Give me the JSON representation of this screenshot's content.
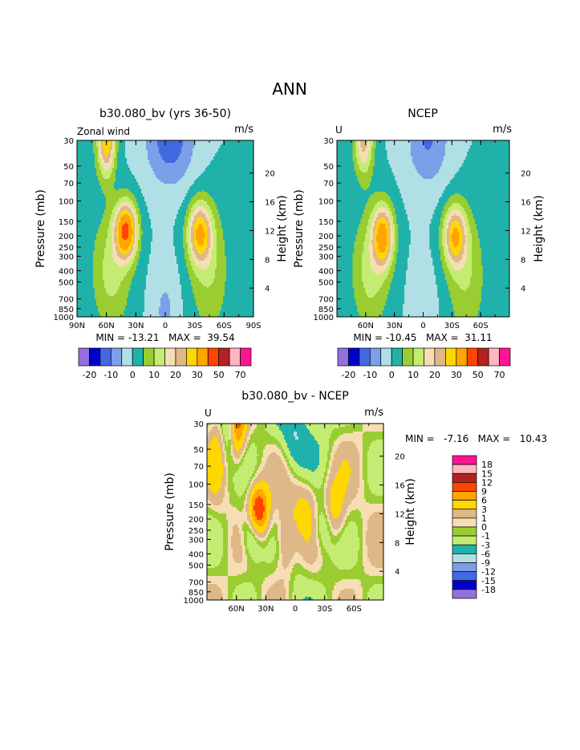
{
  "page_title": "ANN",
  "colors": {
    "full": [
      "#9370db",
      "#0000cd",
      "#4169e1",
      "#7b9fe8",
      "#b0e0e6",
      "#20b2aa",
      "#9acd32",
      "#c5ec72",
      "#f5deb3",
      "#deb887",
      "#ffd700",
      "#ffa500",
      "#ff4500",
      "#b22222",
      "#ffb6c1",
      "#ff1493"
    ],
    "diff": [
      "#9370db",
      "#0000cd",
      "#4169e1",
      "#7b9fe8",
      "#b0e0e6",
      "#20b2aa",
      "#c5ec72",
      "#9acd32",
      "#f5deb3",
      "#deb887",
      "#ffd700",
      "#ffa500",
      "#ff4500",
      "#b22222",
      "#ffb6c1",
      "#ff1493"
    ]
  },
  "chart_data": [
    {
      "type": "heatmap",
      "title": "b30.080_bv (yrs 36-50)",
      "left_label": "Zonal wind",
      "units": "m/s",
      "ylabel": "Pressure (mb)",
      "y2label": "Height (km)",
      "pressure_ticks": [
        "30",
        "50",
        "70",
        "100",
        "150",
        "200",
        "250",
        "300",
        "400",
        "500",
        "700",
        "850",
        "1000"
      ],
      "height_ticks": [
        "20",
        "16",
        "12",
        "8",
        "4"
      ],
      "x_ticks": [
        "90N",
        "60N",
        "30N",
        "0",
        "30S",
        "60S",
        "90S"
      ],
      "x_range": [
        -90,
        90
      ],
      "min_max_text": "MIN = -13.21   MAX =  39.54",
      "levels": [
        -20,
        -15,
        -10,
        -5,
        0,
        5,
        10,
        15,
        20,
        25,
        30,
        40,
        50,
        60,
        70
      ],
      "colorbar_labels": [
        "-20",
        "-10",
        "0",
        "10",
        "20",
        "30",
        "50",
        "70"
      ],
      "jets": [
        {
          "lat": -40,
          "p": 180,
          "max": 39.5
        },
        {
          "lat": 35,
          "p": 190,
          "max": 28
        },
        {
          "lat": -60,
          "p": 30,
          "max": 32
        }
      ]
    },
    {
      "type": "heatmap",
      "title": "NCEP",
      "left_label": "U",
      "units": "m/s",
      "ylabel": "Pressure (mb)",
      "y2label": "Height (km)",
      "pressure_ticks": [
        "30",
        "50",
        "70",
        "100",
        "150",
        "200",
        "250",
        "300",
        "400",
        "500",
        "700",
        "850",
        "1000"
      ],
      "height_ticks": [
        "20",
        "16",
        "12",
        "8",
        "4"
      ],
      "x_ticks": [
        "60N",
        "30N",
        "0",
        "30S",
        "60S"
      ],
      "x_range": [
        -90,
        90
      ],
      "min_max_text": "MIN = -10.45   MAX =  31.11",
      "levels": [
        -20,
        -15,
        -10,
        -5,
        0,
        5,
        10,
        15,
        20,
        25,
        30,
        40,
        50,
        60,
        70
      ],
      "colorbar_labels": [
        "-20",
        "-10",
        "0",
        "10",
        "20",
        "30",
        "50",
        "70"
      ],
      "jets": [
        {
          "lat": -42,
          "p": 200,
          "max": 31
        },
        {
          "lat": 33,
          "p": 200,
          "max": 28
        }
      ]
    },
    {
      "type": "heatmap",
      "title": "b30.080_bv - NCEP",
      "left_label": "U",
      "units": "m/s",
      "ylabel": "Pressure (mb)",
      "y2label": "Height (km)",
      "pressure_ticks": [
        "30",
        "50",
        "70",
        "100",
        "150",
        "200",
        "250",
        "300",
        "400",
        "500",
        "700",
        "850",
        "1000"
      ],
      "height_ticks": [
        "20",
        "16",
        "12",
        "8",
        "4"
      ],
      "x_ticks": [
        "60N",
        "30N",
        "0",
        "30S",
        "60S"
      ],
      "x_range": [
        -90,
        90
      ],
      "min_max_text": "MIN =   -7.16   MAX =   10.43",
      "levels": [
        -18,
        -15,
        -12,
        -9,
        -6,
        -3,
        -1,
        0,
        1,
        3,
        6,
        9,
        12,
        15,
        18
      ],
      "colorbar_labels": [
        "18",
        "15",
        "12",
        "9",
        "6",
        "3",
        "1",
        "0",
        "-1",
        "-3",
        "-6",
        "-9",
        "-12",
        "-15",
        "-18"
      ]
    }
  ]
}
